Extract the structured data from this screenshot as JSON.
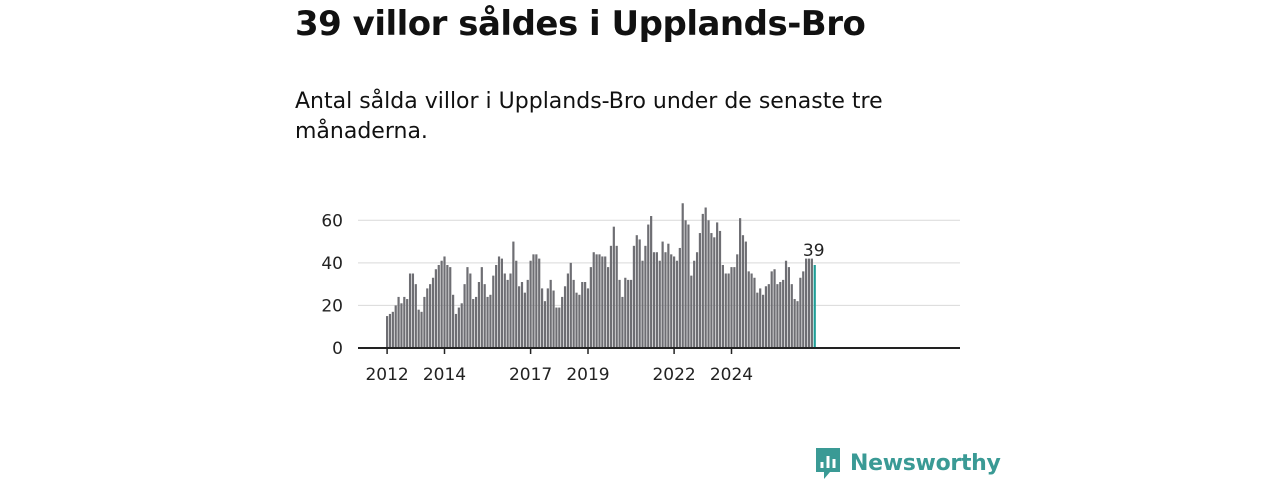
{
  "header": {
    "title": "39 villor såldes i Upplands-Bro",
    "subtitle": "Antal sålda villor i Upplands-Bro under de senaste tre månaderna."
  },
  "colors": {
    "bar": "#6e6e73",
    "highlight": "#1f9e96",
    "grid": "#d9d9d9",
    "axis": "#222222",
    "brand": "#3a9a95"
  },
  "brand": {
    "name": "Newsworthy",
    "icon": "newsworthy-logo-icon"
  },
  "chart_data": {
    "type": "bar",
    "title": "39 villor såldes i Upplands-Bro",
    "xlabel": "",
    "ylabel": "",
    "ylim": [
      0,
      70
    ],
    "yticks": [
      0,
      20,
      40,
      60
    ],
    "xticks": [
      {
        "label": "2012",
        "index": 0
      },
      {
        "label": "2014",
        "index": 20
      },
      {
        "label": "2017",
        "index": 50
      },
      {
        "label": "2019",
        "index": 70
      },
      {
        "label": "2022",
        "index": 100
      },
      {
        "label": "2024",
        "index": 120
      }
    ],
    "highlight_label": "39",
    "values": [
      15,
      16,
      17,
      20,
      24,
      21,
      24,
      23,
      35,
      35,
      30,
      18,
      17,
      24,
      28,
      30,
      33,
      37,
      39,
      41,
      43,
      39,
      38,
      25,
      16,
      19,
      21,
      30,
      38,
      35,
      23,
      24,
      31,
      38,
      30,
      24,
      25,
      34,
      39,
      43,
      42,
      35,
      32,
      35,
      50,
      41,
      29,
      31,
      26,
      32,
      41,
      44,
      44,
      42,
      28,
      22,
      28,
      32,
      27,
      19,
      19,
      24,
      29,
      35,
      40,
      32,
      26,
      25,
      31,
      31,
      28,
      38,
      45,
      44,
      44,
      43,
      43,
      38,
      48,
      57,
      48,
      32,
      24,
      33,
      32,
      32,
      48,
      53,
      51,
      41,
      48,
      58,
      62,
      45,
      45,
      41,
      50,
      45,
      49,
      44,
      43,
      41,
      47,
      68,
      60,
      58,
      34,
      41,
      45,
      54,
      63,
      66,
      60,
      54,
      52,
      59,
      55,
      39,
      35,
      35,
      38,
      38,
      44,
      61,
      53,
      50,
      36,
      35,
      33,
      26,
      28,
      25,
      29,
      30,
      36,
      37,
      30,
      31,
      32,
      41,
      38,
      30,
      23,
      22,
      33,
      36,
      42,
      42,
      42,
      39
    ]
  }
}
